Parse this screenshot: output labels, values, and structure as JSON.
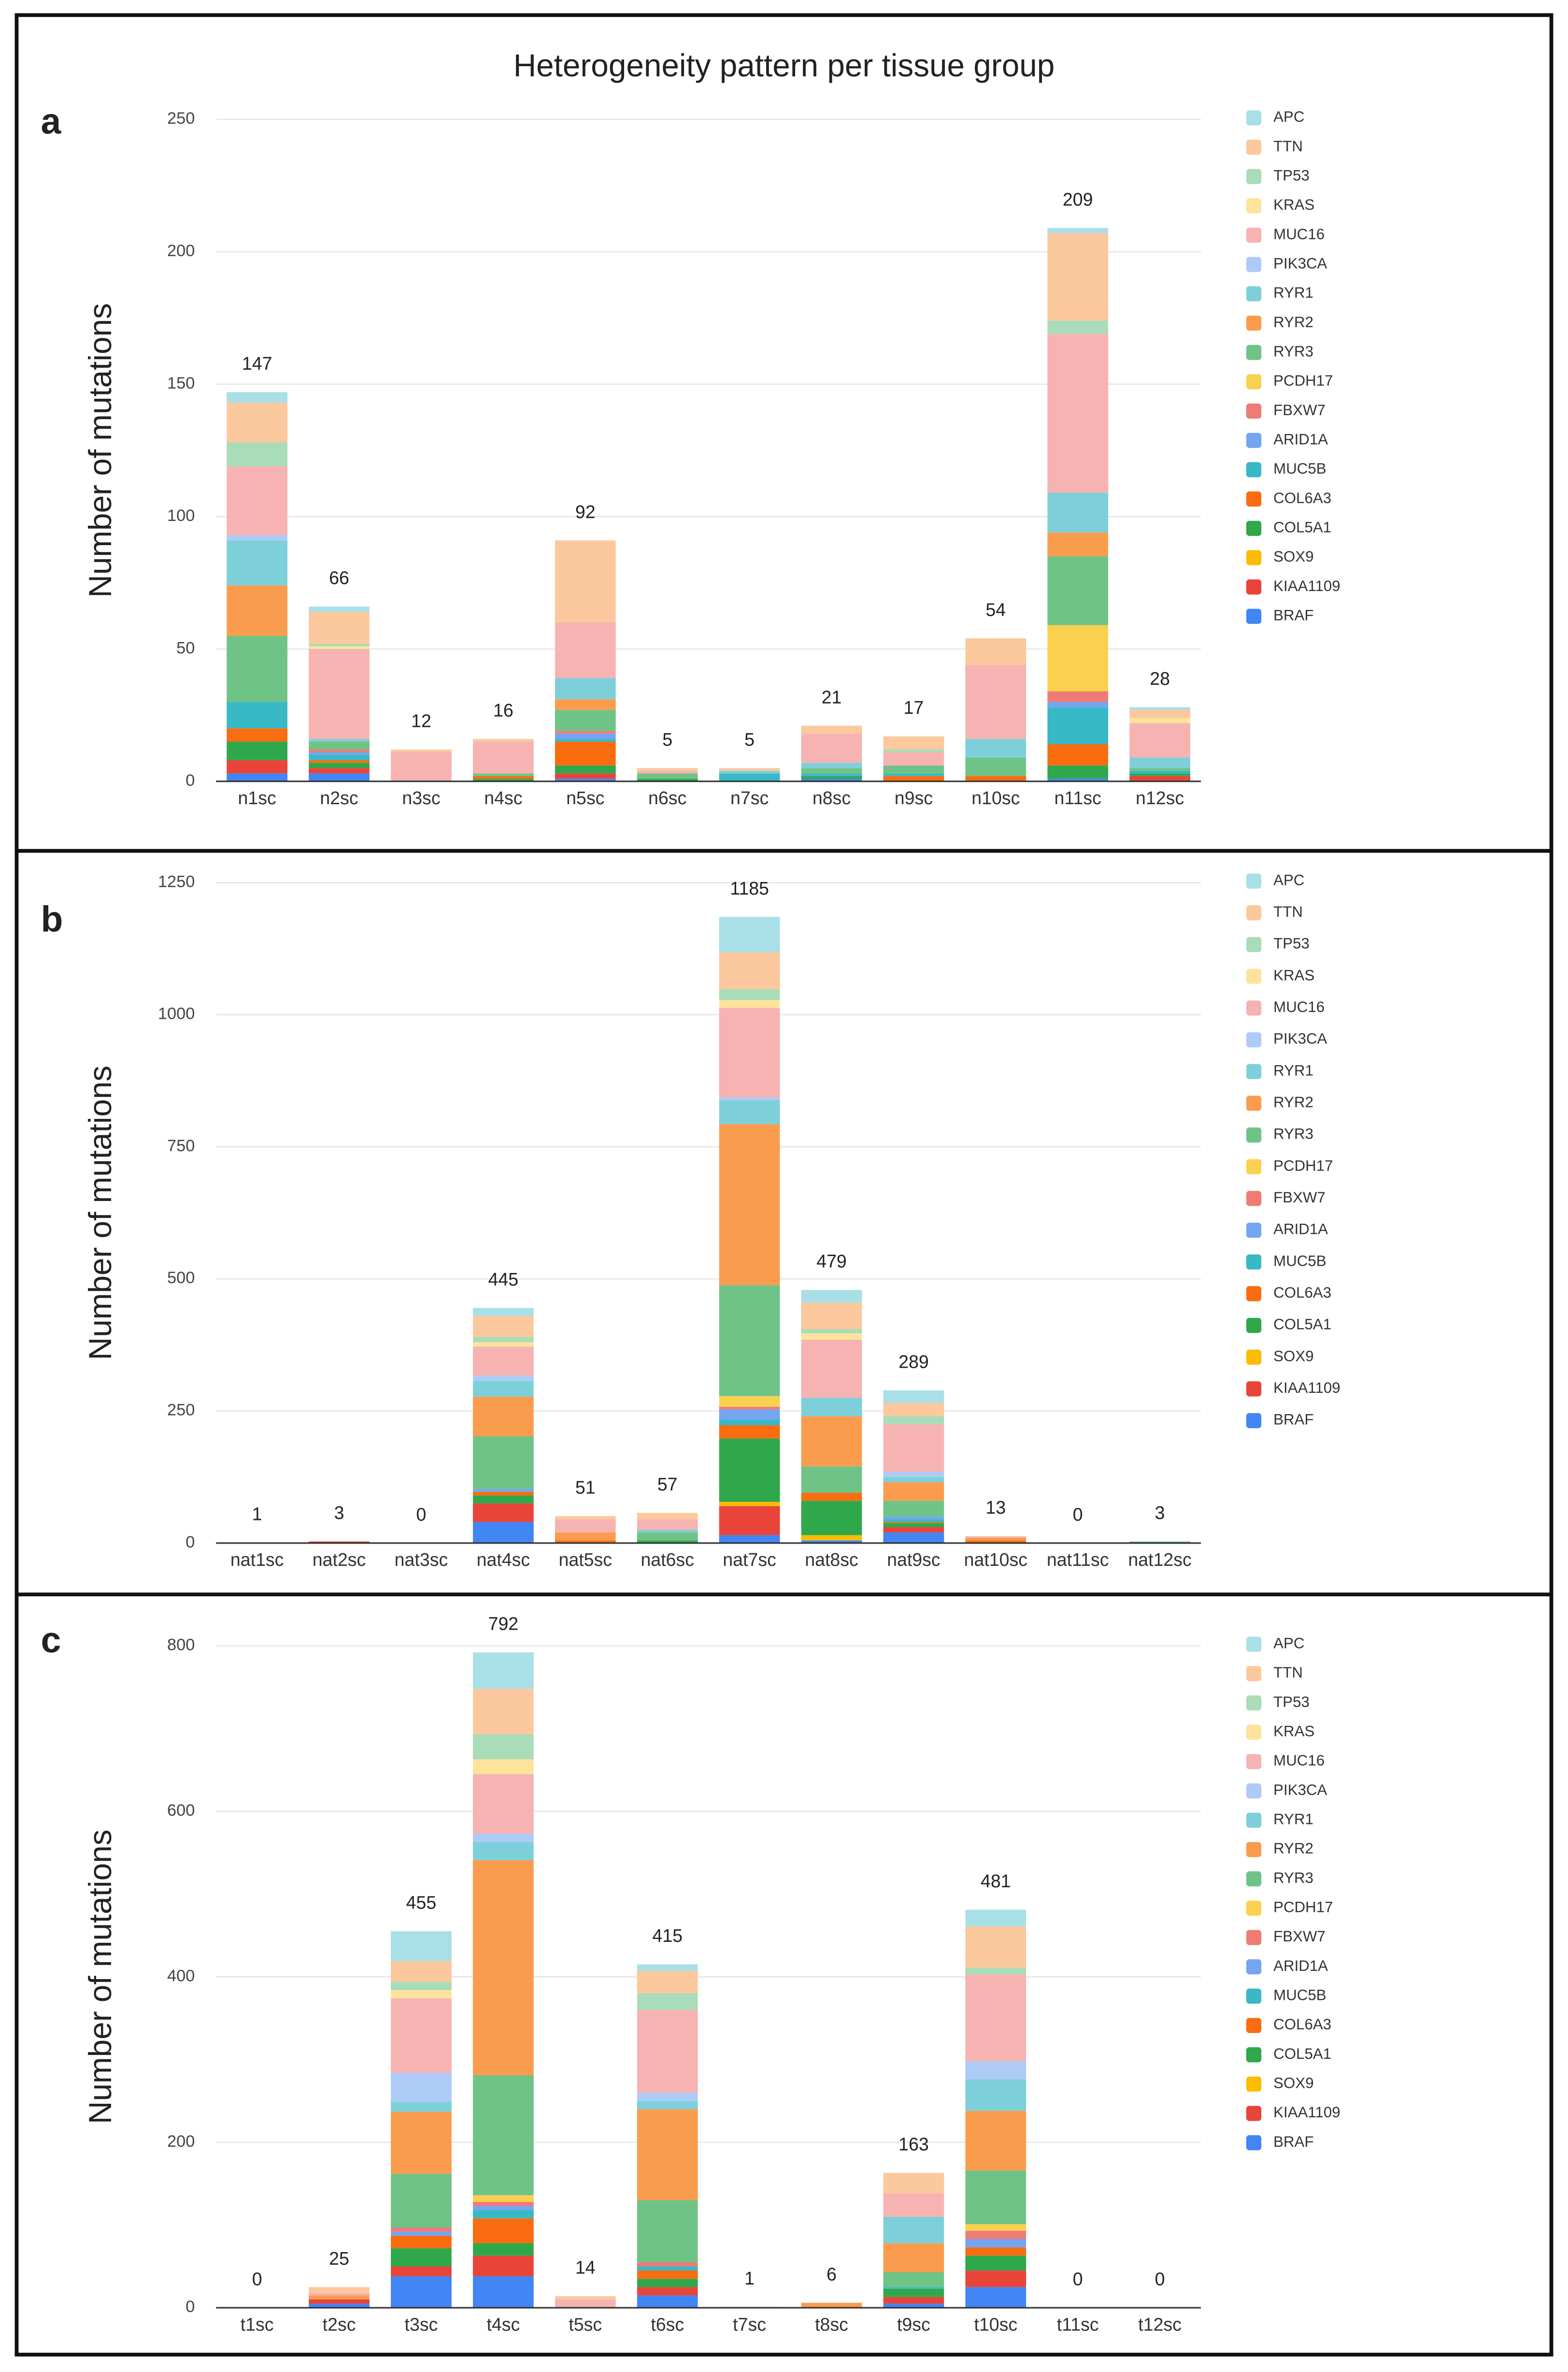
{
  "chart_data": [
    {
      "type": "bar",
      "stacked": true,
      "panel_label": "a",
      "title": "Heterogeneity pattern per tissue group",
      "y_label": "Number of mutations",
      "grid": true,
      "categories": [
        "n1sc",
        "n2sc",
        "n3sc",
        "n4sc",
        "n5sc",
        "n6sc",
        "n7sc",
        "n8sc",
        "n9sc",
        "n10sc",
        "n11sc",
        "n12sc"
      ],
      "totals": [
        147,
        66,
        12,
        16,
        92,
        5,
        5,
        21,
        17,
        54,
        209,
        28
      ],
      "ylim": [
        0,
        250
      ],
      "yticks": [
        0,
        50,
        100,
        150,
        200,
        250
      ],
      "series": [
        {
          "name": "APC",
          "color": "#a9dfe6",
          "values": [
            4,
            2,
            0,
            0,
            0,
            0,
            0,
            0,
            0,
            0,
            2,
            1
          ]
        },
        {
          "name": "TTN",
          "color": "#fcc89d",
          "values": [
            15,
            12,
            1,
            1,
            31,
            1,
            1,
            3,
            5,
            10,
            33,
            3
          ]
        },
        {
          "name": "TP53",
          "color": "#a9dcb8",
          "values": [
            9,
            1,
            0,
            0,
            0,
            0,
            0,
            0,
            1,
            0,
            5,
            0
          ]
        },
        {
          "name": "KRAS",
          "color": "#fde39c",
          "values": [
            0,
            1,
            0,
            0,
            0,
            0,
            0,
            0,
            0,
            0,
            0,
            2
          ]
        },
        {
          "name": "MUC16",
          "color": "#f6b3b1",
          "values": [
            26,
            34,
            11,
            12,
            21,
            1,
            0,
            11,
            5,
            28,
            60,
            13
          ]
        },
        {
          "name": "PIK3CA",
          "color": "#aecbf8",
          "values": [
            2,
            0,
            0,
            0,
            0,
            0,
            0,
            0,
            0,
            0,
            0,
            0
          ]
        },
        {
          "name": "RYR1",
          "color": "#7dd0d9",
          "values": [
            17,
            1,
            0,
            0,
            8,
            0,
            1,
            2,
            0,
            7,
            15,
            4
          ]
        },
        {
          "name": "RYR2",
          "color": "#fa9c4e",
          "values": [
            19,
            0,
            0,
            0,
            4,
            0,
            0,
            0,
            0,
            0,
            9,
            0
          ]
        },
        {
          "name": "RYR3",
          "color": "#70c386",
          "values": [
            25,
            3,
            0,
            1,
            8,
            2,
            0,
            2,
            3,
            7,
            26,
            1
          ]
        },
        {
          "name": "PCDH17",
          "color": "#fad14e",
          "values": [
            0,
            0,
            0,
            0,
            0,
            0,
            0,
            0,
            0,
            0,
            25,
            0
          ]
        },
        {
          "name": "FBXW7",
          "color": "#ef7b76",
          "values": [
            0,
            1,
            0,
            0,
            1,
            0,
            0,
            0,
            0,
            0,
            4,
            0
          ]
        },
        {
          "name": "ARID1A",
          "color": "#73a5f3",
          "values": [
            0,
            1,
            0,
            0,
            2,
            0,
            0,
            0,
            0,
            0,
            2,
            0
          ]
        },
        {
          "name": "MUC5B",
          "color": "#39b8c6",
          "values": [
            10,
            2,
            0,
            0,
            1,
            0,
            3,
            1,
            1,
            0,
            14,
            1
          ]
        },
        {
          "name": "COL6A3",
          "color": "#fa6c10",
          "values": [
            5,
            1,
            0,
            1,
            9,
            0,
            0,
            0,
            2,
            2,
            8,
            0
          ]
        },
        {
          "name": "COL5A1",
          "color": "#2fa84b",
          "values": [
            7,
            2,
            0,
            1,
            3,
            1,
            0,
            1,
            0,
            0,
            5,
            1
          ]
        },
        {
          "name": "SOX9",
          "color": "#fbbc05",
          "values": [
            0,
            0,
            0,
            0,
            0,
            0,
            0,
            0,
            0,
            0,
            0,
            0
          ]
        },
        {
          "name": "KIAA1109",
          "color": "#e8443a",
          "values": [
            5,
            2,
            0,
            0,
            2,
            0,
            0,
            0,
            0,
            0,
            0,
            2
          ]
        },
        {
          "name": "BRAF",
          "color": "#4285f4",
          "values": [
            3,
            3,
            0,
            0,
            1,
            0,
            0,
            1,
            0,
            0,
            1,
            0
          ]
        }
      ]
    },
    {
      "type": "bar",
      "stacked": true,
      "panel_label": "b",
      "y_label": "Number of mutations",
      "grid": true,
      "categories": [
        "nat1sc",
        "nat2sc",
        "nat3sc",
        "nat4sc",
        "nat5sc",
        "nat6sc",
        "nat7sc",
        "nat8sc",
        "nat9sc",
        "nat10sc",
        "nat11sc",
        "nat12sc"
      ],
      "totals": [
        1,
        3,
        0,
        445,
        51,
        57,
        1185,
        479,
        289,
        13,
        0,
        3
      ],
      "ylim": [
        0,
        1250
      ],
      "yticks": [
        0,
        250,
        500,
        750,
        1000,
        1250
      ],
      "series": [
        {
          "name": "APC",
          "color": "#a9dfe6",
          "values": [
            0,
            0,
            0,
            15,
            0,
            0,
            67,
            24,
            24,
            0,
            0,
            0
          ]
        },
        {
          "name": "TTN",
          "color": "#fcc89d",
          "values": [
            0,
            0,
            0,
            40,
            6,
            12,
            70,
            50,
            25,
            0,
            0,
            0
          ]
        },
        {
          "name": "TP53",
          "color": "#a9dcb8",
          "values": [
            0,
            0,
            0,
            10,
            0,
            0,
            20,
            8,
            15,
            0,
            0,
            0
          ]
        },
        {
          "name": "KRAS",
          "color": "#fde39c",
          "values": [
            0,
            0,
            0,
            8,
            0,
            0,
            15,
            12,
            0,
            0,
            0,
            0
          ]
        },
        {
          "name": "MUC16",
          "color": "#f6b3b1",
          "values": [
            1,
            0,
            0,
            55,
            25,
            20,
            170,
            110,
            90,
            3,
            0,
            0
          ]
        },
        {
          "name": "PIK3CA",
          "color": "#aecbf8",
          "values": [
            0,
            0,
            0,
            10,
            0,
            0,
            5,
            0,
            10,
            0,
            0,
            0
          ]
        },
        {
          "name": "RYR1",
          "color": "#7dd0d9",
          "values": [
            0,
            0,
            0,
            30,
            0,
            5,
            45,
            35,
            10,
            0,
            0,
            0
          ]
        },
        {
          "name": "RYR2",
          "color": "#fa9c4e",
          "values": [
            0,
            0,
            0,
            75,
            15,
            0,
            305,
            95,
            35,
            5,
            0,
            0
          ]
        },
        {
          "name": "RYR3",
          "color": "#70c386",
          "values": [
            0,
            0,
            0,
            100,
            0,
            15,
            210,
            50,
            30,
            0,
            0,
            3
          ]
        },
        {
          "name": "PCDH17",
          "color": "#fad14e",
          "values": [
            0,
            0,
            0,
            0,
            0,
            0,
            20,
            0,
            0,
            0,
            0,
            0
          ]
        },
        {
          "name": "FBXW7",
          "color": "#ef7b76",
          "values": [
            0,
            0,
            0,
            0,
            0,
            0,
            5,
            0,
            0,
            0,
            0,
            0
          ]
        },
        {
          "name": "ARID1A",
          "color": "#73a5f3",
          "values": [
            0,
            0,
            0,
            5,
            0,
            0,
            20,
            0,
            5,
            0,
            0,
            0
          ]
        },
        {
          "name": "MUC5B",
          "color": "#39b8c6",
          "values": [
            0,
            0,
            0,
            0,
            0,
            0,
            10,
            0,
            5,
            0,
            0,
            0
          ]
        },
        {
          "name": "COL6A3",
          "color": "#fa6c10",
          "values": [
            0,
            0,
            0,
            7,
            5,
            0,
            25,
            15,
            2,
            5,
            0,
            0
          ]
        },
        {
          "name": "COL5A1",
          "color": "#2fa84b",
          "values": [
            0,
            0,
            0,
            15,
            0,
            5,
            120,
            65,
            8,
            0,
            0,
            0
          ]
        },
        {
          "name": "SOX9",
          "color": "#fbbc05",
          "values": [
            0,
            0,
            0,
            0,
            0,
            0,
            8,
            10,
            0,
            0,
            0,
            0
          ]
        },
        {
          "name": "KIAA1109",
          "color": "#e8443a",
          "values": [
            0,
            3,
            0,
            35,
            0,
            0,
            55,
            0,
            10,
            0,
            0,
            0
          ]
        },
        {
          "name": "BRAF",
          "color": "#4285f4",
          "values": [
            0,
            0,
            0,
            40,
            0,
            0,
            15,
            5,
            20,
            0,
            0,
            0
          ]
        }
      ]
    },
    {
      "type": "bar",
      "stacked": true,
      "panel_label": "c",
      "y_label": "Number of mutations",
      "grid": true,
      "categories": [
        "t1sc",
        "t2sc",
        "t3sc",
        "t4sc",
        "t5sc",
        "t6sc",
        "t7sc",
        "t8sc",
        "t9sc",
        "t10sc",
        "t11sc",
        "t12sc"
      ],
      "totals": [
        0,
        25,
        455,
        792,
        14,
        415,
        1,
        6,
        163,
        481,
        0,
        0
      ],
      "ylim": [
        0,
        800
      ],
      "yticks": [
        0,
        200,
        400,
        600,
        800
      ],
      "series": [
        {
          "name": "APC",
          "color": "#a9dfe6",
          "values": [
            0,
            0,
            36,
            44,
            0,
            8,
            0,
            0,
            0,
            20,
            0,
            0
          ]
        },
        {
          "name": "TTN",
          "color": "#fcc89d",
          "values": [
            0,
            7,
            25,
            55,
            4,
            27,
            0,
            0,
            25,
            50,
            0,
            0
          ]
        },
        {
          "name": "TP53",
          "color": "#a9dcb8",
          "values": [
            0,
            0,
            10,
            30,
            0,
            20,
            0,
            0,
            0,
            8,
            0,
            0
          ]
        },
        {
          "name": "KRAS",
          "color": "#fde39c",
          "values": [
            0,
            0,
            10,
            18,
            0,
            0,
            0,
            0,
            0,
            0,
            0,
            0
          ]
        },
        {
          "name": "MUC16",
          "color": "#f6b3b1",
          "values": [
            0,
            3,
            90,
            72,
            10,
            100,
            0,
            0,
            28,
            105,
            0,
            0
          ]
        },
        {
          "name": "PIK3CA",
          "color": "#aecbf8",
          "values": [
            0,
            0,
            35,
            10,
            0,
            10,
            0,
            0,
            0,
            22,
            0,
            0
          ]
        },
        {
          "name": "RYR1",
          "color": "#7dd0d9",
          "values": [
            0,
            0,
            12,
            22,
            0,
            10,
            0,
            0,
            32,
            38,
            0,
            0
          ]
        },
        {
          "name": "RYR2",
          "color": "#fa9c4e",
          "values": [
            0,
            5,
            75,
            260,
            0,
            110,
            0,
            6,
            35,
            72,
            0,
            0
          ]
        },
        {
          "name": "RYR3",
          "color": "#70c386",
          "values": [
            0,
            0,
            65,
            145,
            0,
            75,
            0,
            0,
            18,
            65,
            0,
            0
          ]
        },
        {
          "name": "PCDH17",
          "color": "#fad14e",
          "values": [
            0,
            0,
            0,
            8,
            0,
            0,
            0,
            0,
            0,
            8,
            0,
            0
          ]
        },
        {
          "name": "FBXW7",
          "color": "#ef7b76",
          "values": [
            0,
            0,
            5,
            5,
            0,
            5,
            0,
            0,
            0,
            10,
            0,
            0
          ]
        },
        {
          "name": "ARID1A",
          "color": "#73a5f3",
          "values": [
            0,
            0,
            5,
            5,
            0,
            0,
            0,
            0,
            0,
            10,
            0,
            0
          ]
        },
        {
          "name": "MUC5B",
          "color": "#39b8c6",
          "values": [
            0,
            0,
            0,
            10,
            0,
            5,
            0,
            0,
            2,
            0,
            0,
            0
          ]
        },
        {
          "name": "COL6A3",
          "color": "#fa6c10",
          "values": [
            0,
            0,
            15,
            30,
            0,
            10,
            0,
            0,
            0,
            10,
            0,
            0
          ]
        },
        {
          "name": "COL5A1",
          "color": "#2fa84b",
          "values": [
            0,
            0,
            22,
            15,
            0,
            10,
            1,
            0,
            10,
            18,
            0,
            0
          ]
        },
        {
          "name": "SOX9",
          "color": "#fbbc05",
          "values": [
            0,
            0,
            0,
            0,
            0,
            0,
            0,
            0,
            0,
            0,
            0,
            0
          ]
        },
        {
          "name": "KIAA1109",
          "color": "#e8443a",
          "values": [
            0,
            5,
            12,
            25,
            0,
            10,
            0,
            0,
            8,
            20,
            0,
            0
          ]
        },
        {
          "name": "BRAF",
          "color": "#4285f4",
          "values": [
            0,
            5,
            38,
            38,
            0,
            15,
            0,
            0,
            5,
            25,
            0,
            0
          ]
        }
      ]
    }
  ]
}
